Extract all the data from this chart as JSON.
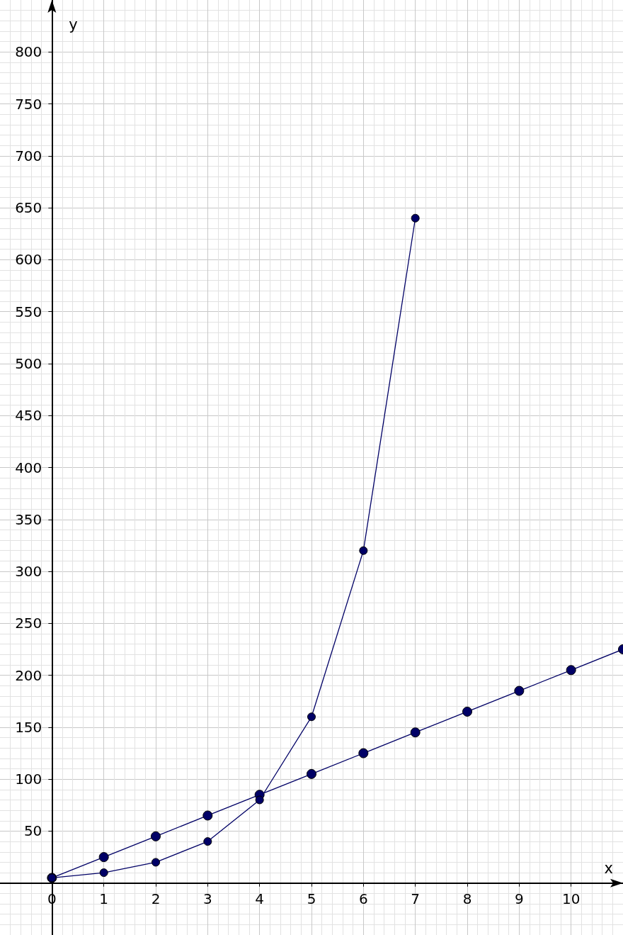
{
  "chart_data": {
    "type": "line",
    "xlabel": "x",
    "ylabel": "y",
    "series": [
      {
        "color": "#000066",
        "x": [
          0,
          1,
          2,
          3,
          4,
          5,
          6,
          7
        ],
        "values": [
          5,
          10,
          20,
          40,
          80,
          160,
          320,
          640
        ]
      },
      {
        "color": "#000066",
        "x": [
          0,
          1,
          2,
          3,
          4,
          5,
          6,
          7,
          8,
          9,
          10,
          11
        ],
        "values": [
          5,
          25,
          45,
          65,
          85,
          105,
          125,
          145,
          165,
          185,
          205,
          225
        ]
      }
    ],
    "xlim": [
      -1,
      11
    ],
    "ylim": [
      -50,
      850
    ],
    "xticks": [
      0,
      1,
      2,
      3,
      4,
      5,
      6,
      7,
      8,
      9,
      10
    ],
    "yticks": [
      50,
      100,
      150,
      200,
      250,
      300,
      350,
      400,
      450,
      500,
      550,
      600,
      650,
      700,
      750,
      800
    ],
    "grid": true,
    "marker": "circle",
    "line_style": "solid"
  }
}
